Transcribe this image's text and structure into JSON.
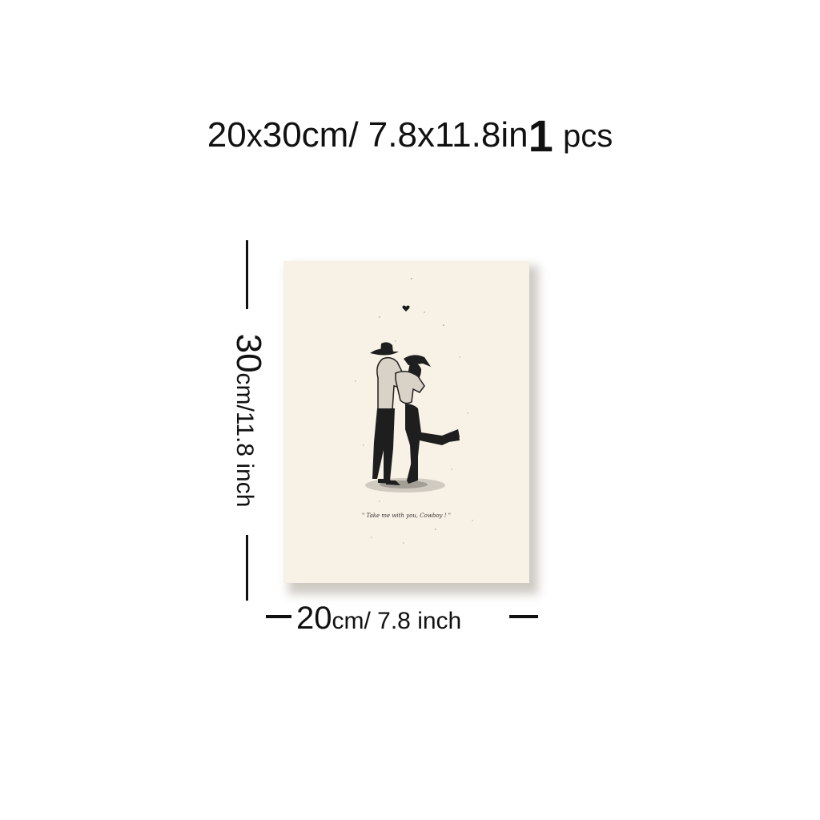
{
  "title": {
    "size_cm": "20",
    "x": "x",
    "size_cm_rest": "30cm/ 7.8x11.8in",
    "quantity": "1",
    "unit": "pcs"
  },
  "poster": {
    "quote": "\" Take me with you, Cowboy ! \"",
    "colors": {
      "paper": "#f8f2e6",
      "ink": "#1a1a1a"
    },
    "icons": [
      "heart-icon"
    ]
  },
  "height_dimension": {
    "value": "30",
    "unit_text": "cm/11.8 inch"
  },
  "width_dimension": {
    "value": "20",
    "unit_text": "cm/ 7.8 inch"
  }
}
